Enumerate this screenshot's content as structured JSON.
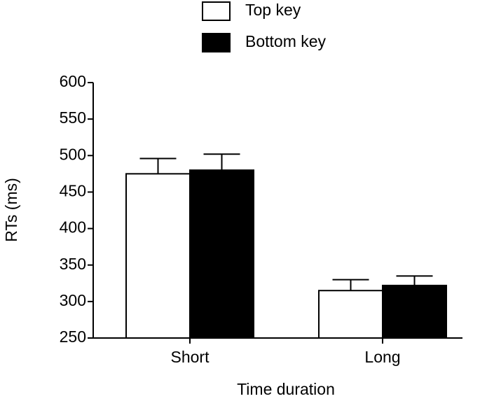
{
  "chart_data": {
    "type": "bar",
    "categories": [
      "Short",
      "Long"
    ],
    "series": [
      {
        "name": "Top key",
        "color": "#ffffff",
        "values": [
          475,
          315
        ],
        "errors": [
          21,
          15
        ]
      },
      {
        "name": "Bottom key",
        "color": "#000000",
        "values": [
          480,
          322
        ],
        "errors": [
          22,
          13
        ]
      }
    ],
    "x_label": "Time duration",
    "y_label": "RTs (ms)",
    "ylim": [
      250,
      600
    ],
    "yticks": [
      250,
      300,
      350,
      400,
      450,
      500,
      550,
      600
    ]
  }
}
